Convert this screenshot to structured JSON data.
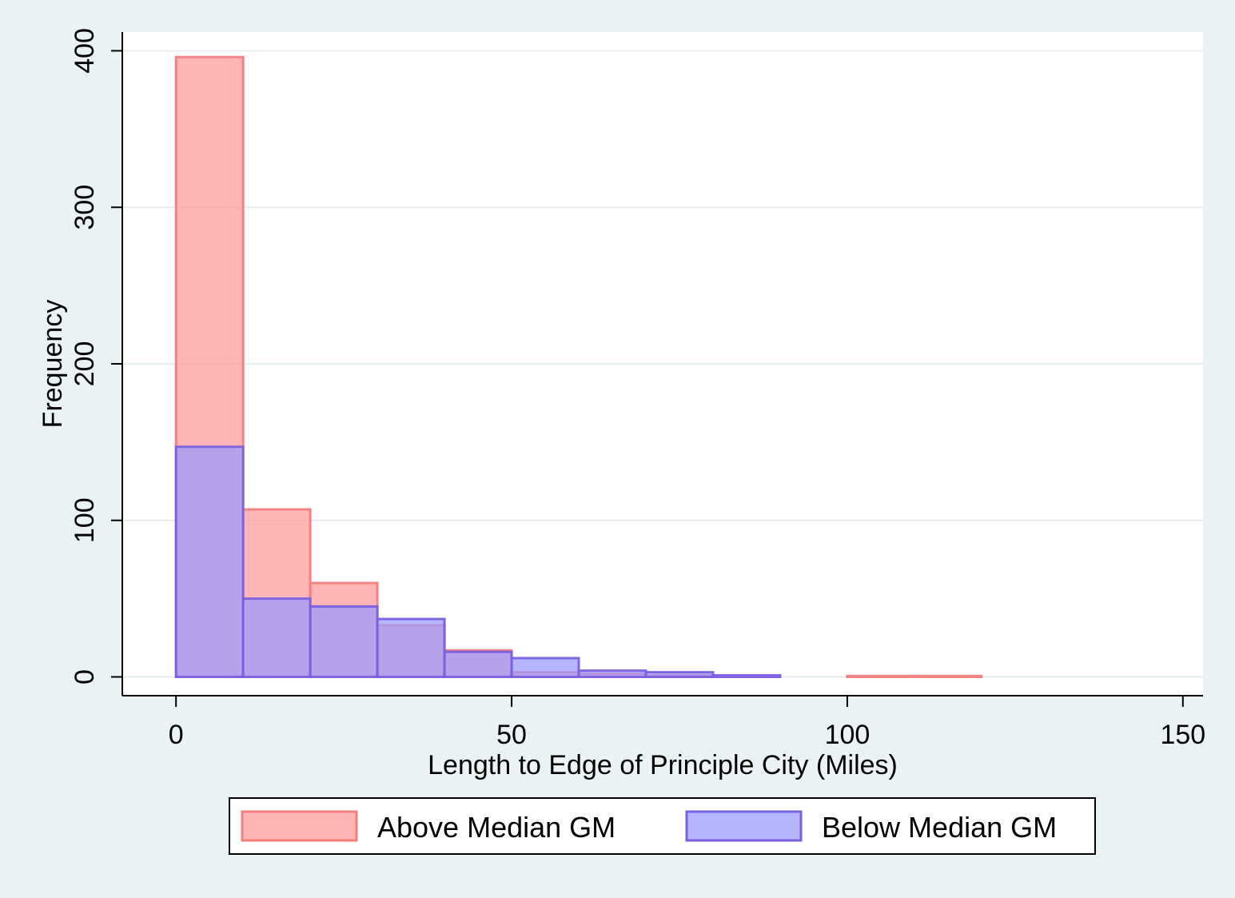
{
  "chart_data": {
    "type": "bar",
    "subtype": "overlaid-histogram",
    "title": "",
    "xlabel": "Length to Edge of Principle City (Miles)",
    "ylabel": "Frequency",
    "xlim": [
      -8,
      153
    ],
    "ylim": [
      -12,
      412
    ],
    "xticks": [
      0,
      50,
      100,
      150
    ],
    "yticks": [
      0,
      100,
      200,
      300,
      400
    ],
    "grid": "horizontal",
    "legend_position": "bottom",
    "bin_width": 10,
    "series": [
      {
        "name": "Above Median GM",
        "fill": "#ff9999",
        "stroke": "#f47d7d",
        "opacity": 0.72,
        "bins": [
          {
            "start": 0,
            "end": 10,
            "value": 396
          },
          {
            "start": 10,
            "end": 20,
            "value": 107
          },
          {
            "start": 20,
            "end": 30,
            "value": 60
          },
          {
            "start": 30,
            "end": 40,
            "value": 33
          },
          {
            "start": 40,
            "end": 50,
            "value": 17
          },
          {
            "start": 50,
            "end": 60,
            "value": 3
          },
          {
            "start": 60,
            "end": 70,
            "value": 2
          },
          {
            "start": 70,
            "end": 80,
            "value": 1
          },
          {
            "start": 80,
            "end": 90,
            "value": 1
          },
          {
            "start": 100,
            "end": 110,
            "value": 0.6
          },
          {
            "start": 110,
            "end": 120,
            "value": 0.6
          }
        ]
      },
      {
        "name": "Below Median GM",
        "fill": "#9a9aff",
        "stroke": "#7a5fe0",
        "opacity": 0.72,
        "bins": [
          {
            "start": 0,
            "end": 10,
            "value": 147
          },
          {
            "start": 10,
            "end": 20,
            "value": 50
          },
          {
            "start": 20,
            "end": 30,
            "value": 45
          },
          {
            "start": 30,
            "end": 40,
            "value": 37
          },
          {
            "start": 40,
            "end": 50,
            "value": 16
          },
          {
            "start": 50,
            "end": 60,
            "value": 12
          },
          {
            "start": 60,
            "end": 70,
            "value": 4
          },
          {
            "start": 70,
            "end": 80,
            "value": 3
          },
          {
            "start": 80,
            "end": 90,
            "value": 1
          }
        ]
      }
    ]
  },
  "colors": {
    "background": "#eaf2f3",
    "plot_background": "#ffffff",
    "grid": "#e6eeef",
    "axis": "#000000"
  }
}
